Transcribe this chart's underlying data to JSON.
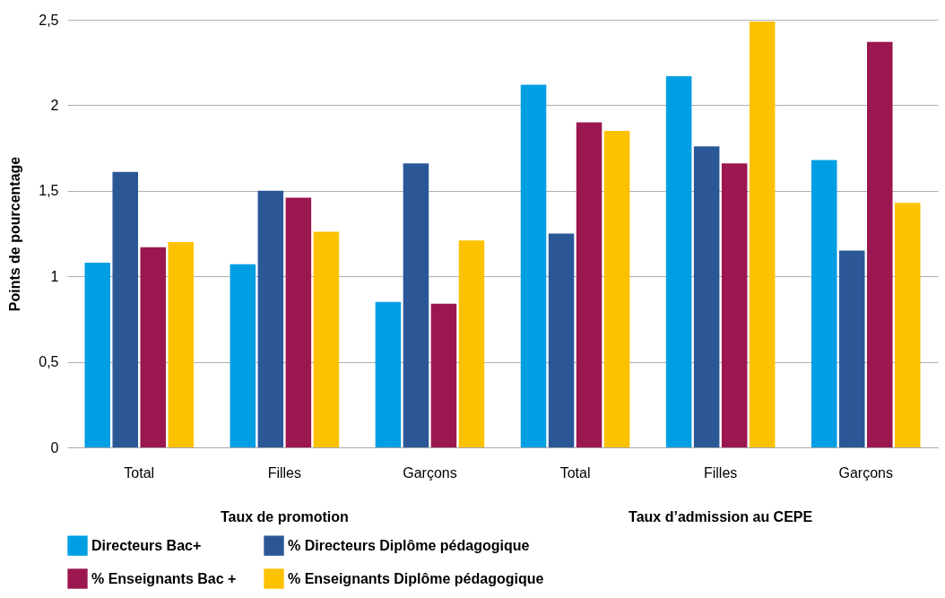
{
  "chart_data": {
    "type": "bar",
    "ylabel": "Points de pourcentage",
    "categories": [
      "Total",
      "Filles",
      "Garçons",
      "Total",
      "Filles",
      "Garçons"
    ],
    "series": [
      {
        "name": "Directeurs Bac+",
        "color": "#009fe3",
        "values": [
          1.08,
          1.07,
          0.85,
          2.12,
          2.17,
          1.68
        ]
      },
      {
        "name": "% Directeurs Diplôme pédagogique",
        "color": "#2b5797",
        "values": [
          1.61,
          1.5,
          1.66,
          1.25,
          1.76,
          1.15
        ]
      },
      {
        "name": "% Enseignants Bac +",
        "color": "#9b1750",
        "values": [
          1.17,
          1.46,
          0.84,
          1.9,
          1.66,
          2.37
        ]
      },
      {
        "name": "% Enseignants Diplôme pédagogique",
        "color": "#fcc200",
        "values": [
          1.2,
          1.26,
          1.21,
          1.85,
          2.49,
          1.43
        ]
      }
    ],
    "ylim": [
      0,
      2.5
    ],
    "yticks": [
      0,
      {
        "value": 0.5,
        "label": "0,5"
      },
      1,
      {
        "value": 1.5,
        "label": "1,5"
      },
      2,
      {
        "value": 2.5,
        "label": "2,5"
      }
    ],
    "grid": "y",
    "legend": "bottom",
    "annotations": [
      "Taux de promotion",
      "Taux d’admission au CEPE"
    ]
  }
}
